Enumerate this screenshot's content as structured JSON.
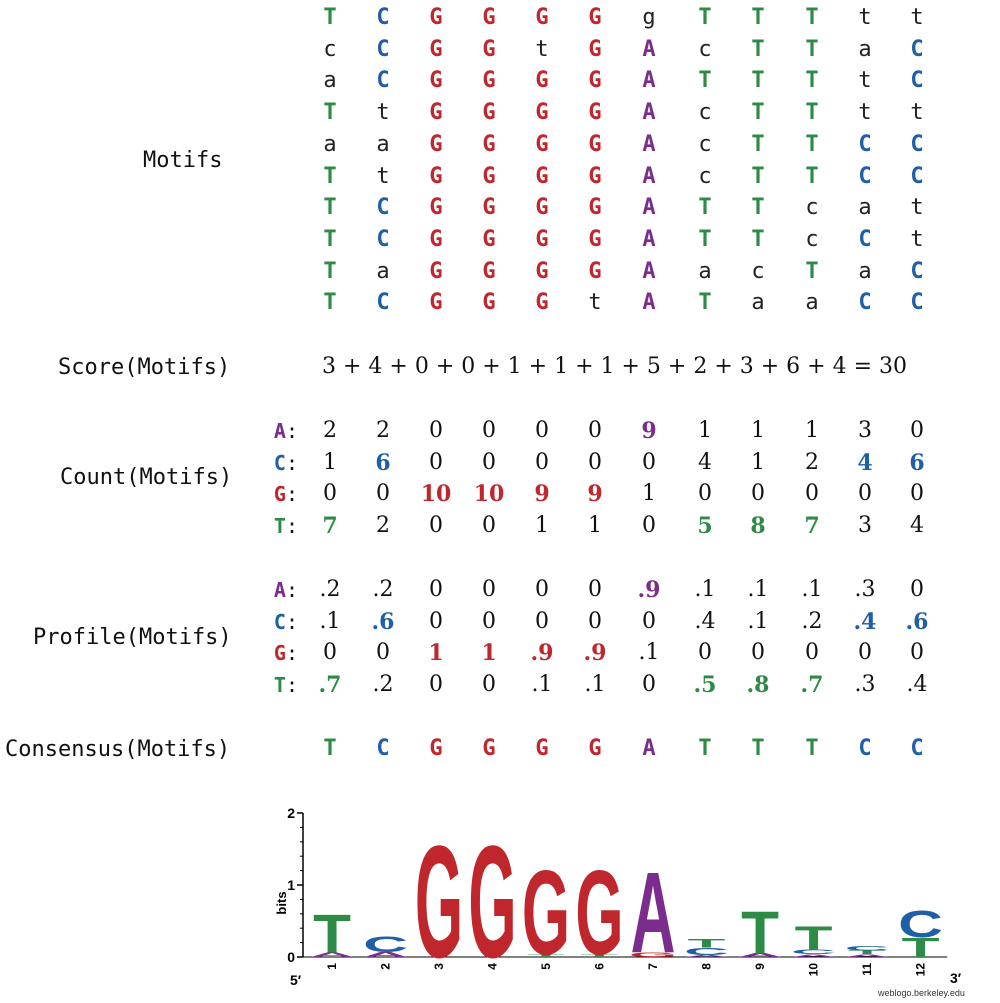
{
  "labels": {
    "motifs": "Motifs",
    "score": "Score(Motifs)",
    "count": "Count(Motifs)",
    "profile": "Profile(Motifs)",
    "consensus": "Consensus(Motifs)"
  },
  "colors": {
    "A": "#7b2d8e",
    "C": "#1f5fa6",
    "G": "#c0272d",
    "T": "#2e8b46",
    "other": "#222222"
  },
  "motifs": [
    "TCGGGGgTTTtt",
    "cCGGtGAcTTaC",
    "aCGGGGATTTtC",
    "TtGGGGAcTTtt",
    "aaGGGGAcTTCC",
    "TtGGGGAcTTCC",
    "TCGGGGATTcat",
    "TCGGGGATTcCt",
    "TaGGGGAacTaC",
    "TCGGGtATaaCC"
  ],
  "score_text": "3 + 4 + 0 + 0 + 1 + 1 + 1 + 5 + 2 + 3 + 6 + 4 = 30",
  "row_letters": [
    "A",
    "C",
    "G",
    "T"
  ],
  "row_colon": ":",
  "count": [
    [
      {
        "v": "2",
        "b": false
      },
      {
        "v": "2",
        "b": false
      },
      {
        "v": "0",
        "b": false
      },
      {
        "v": "0",
        "b": false
      },
      {
        "v": "0",
        "b": false
      },
      {
        "v": "0",
        "b": false
      },
      {
        "v": "9",
        "b": true
      },
      {
        "v": "1",
        "b": false
      },
      {
        "v": "1",
        "b": false
      },
      {
        "v": "1",
        "b": false
      },
      {
        "v": "3",
        "b": false
      },
      {
        "v": "0",
        "b": false
      }
    ],
    [
      {
        "v": "1",
        "b": false
      },
      {
        "v": "6",
        "b": true
      },
      {
        "v": "0",
        "b": false
      },
      {
        "v": "0",
        "b": false
      },
      {
        "v": "0",
        "b": false
      },
      {
        "v": "0",
        "b": false
      },
      {
        "v": "0",
        "b": false
      },
      {
        "v": "4",
        "b": false
      },
      {
        "v": "1",
        "b": false
      },
      {
        "v": "2",
        "b": false
      },
      {
        "v": "4",
        "b": true
      },
      {
        "v": "6",
        "b": true
      }
    ],
    [
      {
        "v": "0",
        "b": false
      },
      {
        "v": "0",
        "b": false
      },
      {
        "v": "10",
        "b": true
      },
      {
        "v": "10",
        "b": true
      },
      {
        "v": "9",
        "b": true
      },
      {
        "v": "9",
        "b": true
      },
      {
        "v": "1",
        "b": false
      },
      {
        "v": "0",
        "b": false
      },
      {
        "v": "0",
        "b": false
      },
      {
        "v": "0",
        "b": false
      },
      {
        "v": "0",
        "b": false
      },
      {
        "v": "0",
        "b": false
      }
    ],
    [
      {
        "v": "7",
        "b": true
      },
      {
        "v": "2",
        "b": false
      },
      {
        "v": "0",
        "b": false
      },
      {
        "v": "0",
        "b": false
      },
      {
        "v": "1",
        "b": false
      },
      {
        "v": "1",
        "b": false
      },
      {
        "v": "0",
        "b": false
      },
      {
        "v": "5",
        "b": true
      },
      {
        "v": "8",
        "b": true
      },
      {
        "v": "7",
        "b": true
      },
      {
        "v": "3",
        "b": false
      },
      {
        "v": "4",
        "b": false
      }
    ]
  ],
  "profile": [
    [
      {
        "v": ".2",
        "b": false
      },
      {
        "v": ".2",
        "b": false
      },
      {
        "v": "0",
        "b": false
      },
      {
        "v": "0",
        "b": false
      },
      {
        "v": "0",
        "b": false
      },
      {
        "v": "0",
        "b": false
      },
      {
        "v": ".9",
        "b": true
      },
      {
        "v": ".1",
        "b": false
      },
      {
        "v": ".1",
        "b": false
      },
      {
        "v": ".1",
        "b": false
      },
      {
        "v": ".3",
        "b": false
      },
      {
        "v": "0",
        "b": false
      }
    ],
    [
      {
        "v": ".1",
        "b": false
      },
      {
        "v": ".6",
        "b": true
      },
      {
        "v": "0",
        "b": false
      },
      {
        "v": "0",
        "b": false
      },
      {
        "v": "0",
        "b": false
      },
      {
        "v": "0",
        "b": false
      },
      {
        "v": "0",
        "b": false
      },
      {
        "v": ".4",
        "b": false
      },
      {
        "v": ".1",
        "b": false
      },
      {
        "v": ".2",
        "b": false
      },
      {
        "v": ".4",
        "b": true
      },
      {
        "v": ".6",
        "b": true
      }
    ],
    [
      {
        "v": "0",
        "b": false
      },
      {
        "v": "0",
        "b": false
      },
      {
        "v": "1",
        "b": true
      },
      {
        "v": "1",
        "b": true
      },
      {
        "v": ".9",
        "b": true
      },
      {
        "v": ".9",
        "b": true
      },
      {
        "v": ".1",
        "b": false
      },
      {
        "v": "0",
        "b": false
      },
      {
        "v": "0",
        "b": false
      },
      {
        "v": "0",
        "b": false
      },
      {
        "v": "0",
        "b": false
      },
      {
        "v": "0",
        "b": false
      }
    ],
    [
      {
        "v": ".7",
        "b": true
      },
      {
        "v": ".2",
        "b": false
      },
      {
        "v": "0",
        "b": false
      },
      {
        "v": "0",
        "b": false
      },
      {
        "v": ".1",
        "b": false
      },
      {
        "v": ".1",
        "b": false
      },
      {
        "v": "0",
        "b": false
      },
      {
        "v": ".5",
        "b": true
      },
      {
        "v": ".8",
        "b": true
      },
      {
        "v": ".7",
        "b": true
      },
      {
        "v": ".3",
        "b": false
      },
      {
        "v": ".4",
        "b": false
      }
    ]
  ],
  "consensus": "TCGGGGATTTCC",
  "logo": {
    "ylabel": "bits",
    "yticks": [
      "0",
      "1",
      "2"
    ],
    "ymax_bits": 2,
    "positions": [
      "1",
      "2",
      "3",
      "4",
      "5",
      "6",
      "7",
      "8",
      "9",
      "10",
      "11",
      "12"
    ],
    "end5": "5′",
    "end3": "3′",
    "credit": "weblogo.berkeley.edu",
    "stacks": [
      [
        {
          "l": "A",
          "bits": 0.06
        },
        {
          "l": "T",
          "bits": 0.55
        }
      ],
      [
        {
          "l": "A",
          "bits": 0.07
        },
        {
          "l": "C",
          "bits": 0.22
        }
      ],
      [
        {
          "l": "G",
          "bits": 1.6
        }
      ],
      [
        {
          "l": "G",
          "bits": 1.6
        }
      ],
      [
        {
          "l": "T",
          "bits": 0.04
        },
        {
          "l": "G",
          "bits": 1.2
        }
      ],
      [
        {
          "l": "T",
          "bits": 0.04
        },
        {
          "l": "G",
          "bits": 1.2
        }
      ],
      [
        {
          "l": "G",
          "bits": 0.06
        },
        {
          "l": "A",
          "bits": 1.15
        }
      ],
      [
        {
          "l": "A",
          "bits": 0.03
        },
        {
          "l": "C",
          "bits": 0.1
        },
        {
          "l": "T",
          "bits": 0.12
        }
      ],
      [
        {
          "l": "A",
          "bits": 0.05
        },
        {
          "l": "T",
          "bits": 0.6
        }
      ],
      [
        {
          "l": "A",
          "bits": 0.04
        },
        {
          "l": "C",
          "bits": 0.06
        },
        {
          "l": "T",
          "bits": 0.34
        }
      ],
      [
        {
          "l": "A",
          "bits": 0.04
        },
        {
          "l": "T",
          "bits": 0.05
        },
        {
          "l": "C",
          "bits": 0.06
        }
      ],
      [
        {
          "l": "T",
          "bits": 0.28
        },
        {
          "l": "C",
          "bits": 0.38
        }
      ]
    ]
  }
}
